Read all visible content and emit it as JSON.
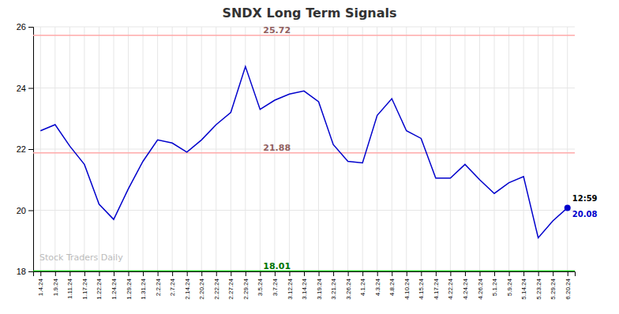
{
  "chart_data": {
    "type": "line",
    "title": "SNDX Long Term Signals",
    "categories": [
      "1.4.24",
      "1.9.24",
      "1.11.24",
      "1.17.24",
      "1.22.24",
      "1.24.24",
      "1.29.24",
      "1.31.24",
      "2.2.24",
      "2.7.24",
      "2.14.24",
      "2.20.24",
      "2.22.24",
      "2.27.24",
      "2.29.24",
      "3.5.24",
      "3.7.24",
      "3.12.24",
      "3.14.24",
      "3.19.24",
      "3.21.24",
      "3.26.24",
      "4.1.24",
      "4.3.24",
      "4.8.24",
      "4.10.24",
      "4.15.24",
      "4.17.24",
      "4.22.24",
      "4.24.24",
      "4.26.24",
      "5.1.24",
      "5.9.24",
      "5.14.24",
      "5.23.24",
      "5.29.24",
      "6.20.24"
    ],
    "values": [
      22.6,
      22.8,
      22.1,
      21.5,
      20.2,
      19.7,
      20.7,
      21.6,
      22.3,
      22.2,
      21.9,
      22.3,
      22.8,
      23.2,
      24.7,
      23.3,
      23.6,
      23.8,
      23.9,
      23.55,
      22.15,
      21.6,
      21.55,
      23.1,
      23.65,
      22.6,
      22.35,
      21.05,
      21.05,
      21.5,
      21.0,
      20.55,
      20.9,
      21.1,
      19.1,
      19.65,
      20.08
    ],
    "color": "#0000cc",
    "ylim": [
      18,
      26
    ],
    "yticks": [
      18,
      20,
      22,
      24,
      26
    ],
    "grid": true,
    "reference_lines": [
      {
        "value": 25.72,
        "color": "#ffaaaa"
      },
      {
        "value": 21.88,
        "color": "#ffaaaa"
      },
      {
        "value": 18.01,
        "color": "#00cc00"
      }
    ],
    "end_label": "12:59",
    "watermark": "Stock Traders Daily"
  }
}
